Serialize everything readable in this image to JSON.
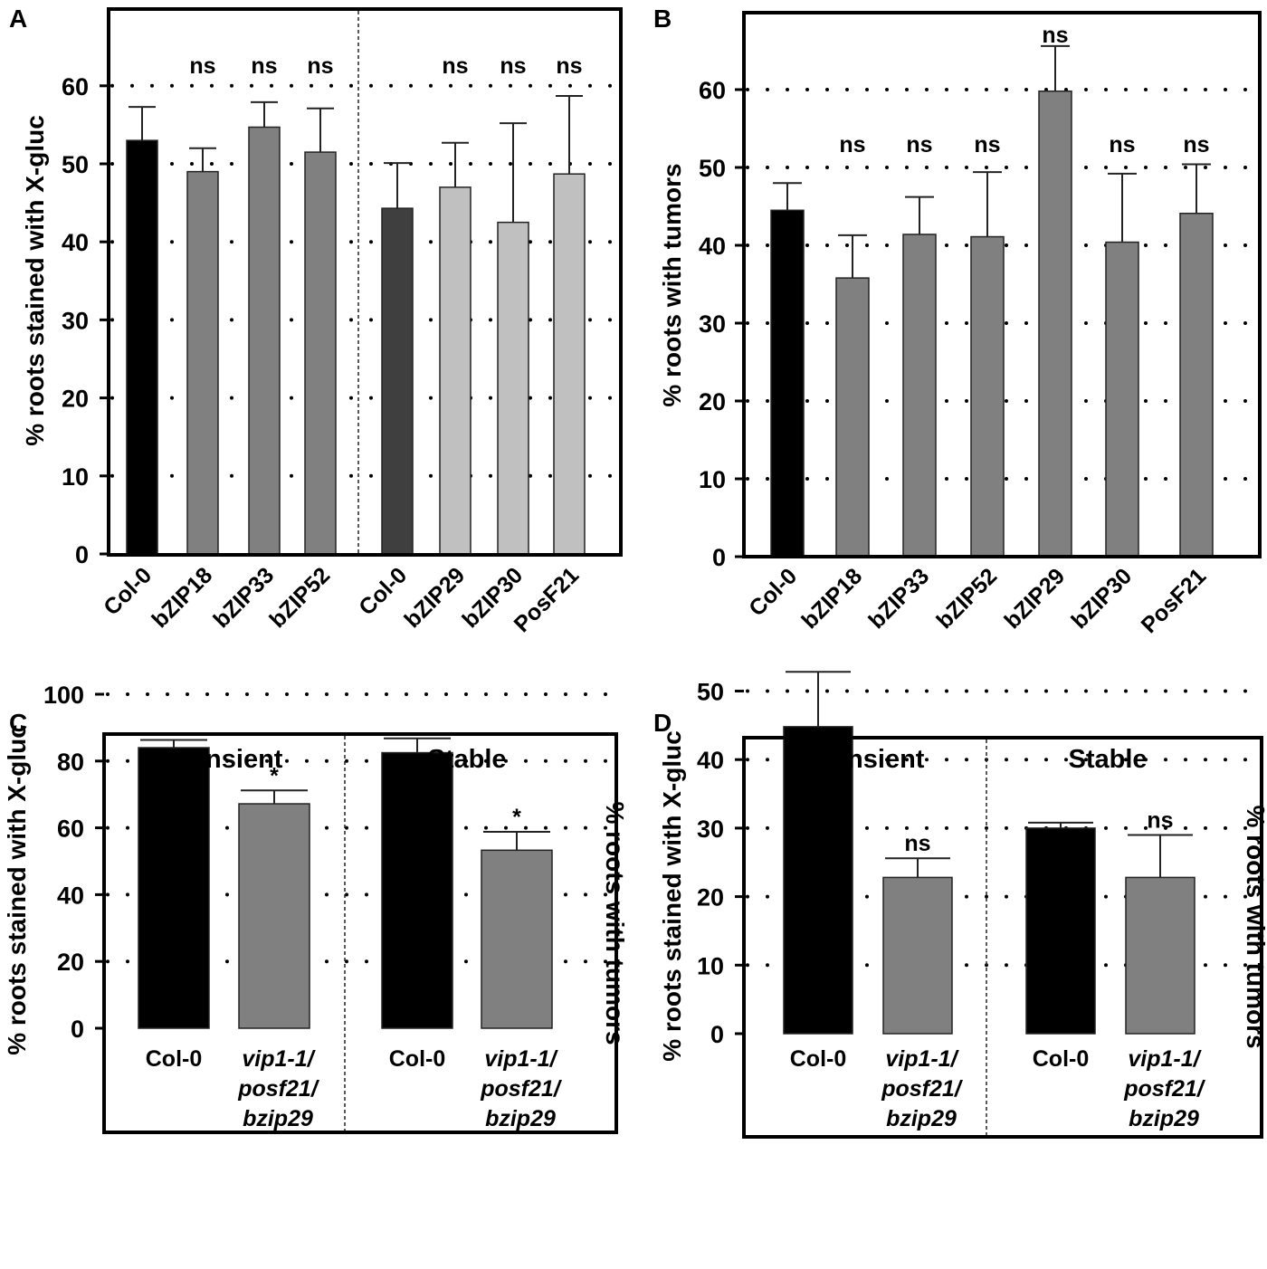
{
  "chart_data": [
    {
      "panel": "A",
      "type": "bar",
      "ylabel": "% roots stained with X-gluc",
      "ylim": [
        0,
        70
      ],
      "yticks": [
        0,
        10,
        20,
        30,
        40,
        50,
        60
      ],
      "gridlines": [
        10,
        20,
        30,
        40,
        50,
        60
      ],
      "categories": [
        "Col-0",
        "bZIP18",
        "bZIP33",
        "bZIP52",
        "Col-0",
        "bZIP29",
        "bZIP30",
        "PosF21"
      ],
      "values": [
        53,
        49,
        54.7,
        51.5,
        44.3,
        47,
        42.5,
        48.7
      ],
      "errors": [
        4.3,
        3,
        3.2,
        5.6,
        5.8,
        5.7,
        12.7,
        10
      ],
      "annotations": [
        "",
        "ns",
        "ns",
        "ns",
        "",
        "ns",
        "ns",
        "ns"
      ],
      "colors": [
        "#000000",
        "#808080",
        "#808080",
        "#808080",
        "#3f3f3f",
        "#c0c0c0",
        "#c0c0c0",
        "#c0c0c0"
      ]
    },
    {
      "panel": "B",
      "type": "bar",
      "ylabel": "% roots with tumors",
      "ylim": [
        0,
        70
      ],
      "yticks": [
        0,
        10,
        20,
        30,
        40,
        50,
        60
      ],
      "gridlines": [
        10,
        20,
        30,
        40,
        50,
        60
      ],
      "categories": [
        "Col-0",
        "bZIP18",
        "bZIP33",
        "bZIP52",
        "bZIP29",
        "bZIP30",
        "PosF21"
      ],
      "values": [
        44.5,
        35.8,
        41.4,
        41.1,
        59.8,
        40.4,
        44.1
      ],
      "errors": [
        3.5,
        5.5,
        4.8,
        8.3,
        5.8,
        8.8,
        6.3
      ],
      "annotations": [
        "",
        "ns",
        "ns",
        "ns",
        "ns",
        "ns",
        "ns"
      ],
      "colors": [
        "#000000",
        "#808080",
        "#808080",
        "#808080",
        "#808080",
        "#808080",
        "#808080"
      ]
    },
    {
      "panel": "C",
      "type": "bar",
      "ylabel": "% roots  stained with X-gluc",
      "ylabel_right": "% roots with tumors",
      "ylim": [
        0,
        120
      ],
      "yticks": [
        0,
        20,
        40,
        60,
        80,
        100
      ],
      "gridlines": [
        20,
        40,
        60,
        80,
        100
      ],
      "sections": [
        "Transient",
        "Stable"
      ],
      "categories": [
        "Col-0",
        "vip1-1/\nposf21/\nbzip29",
        "Col-0",
        "vip1-1/\nposf21/\nbzip29"
      ],
      "values": [
        84,
        67.2,
        82.5,
        53.3
      ],
      "errors": [
        2.3,
        4,
        4.3,
        5.5
      ],
      "annotations": [
        "",
        "*",
        "",
        "*"
      ],
      "colors": [
        "#000000",
        "#808080",
        "#000000",
        "#808080"
      ]
    },
    {
      "panel": "D",
      "type": "bar",
      "ylabel": "% roots stained with X-gluc",
      "ylabel_right": "% roots with tumors",
      "ylim": [
        0,
        60
      ],
      "yticks": [
        0,
        10,
        20,
        30,
        40,
        50
      ],
      "gridlines": [
        10,
        20,
        30,
        40,
        50
      ],
      "sections": [
        "Transient",
        "Stable"
      ],
      "categories": [
        "Col-0",
        "vip1-1/\nposf21/\nbzip29",
        "Col-0",
        "vip1-1/\nposf21/\nbzip29"
      ],
      "values": [
        44.8,
        22.8,
        30,
        22.8
      ],
      "errors": [
        8,
        2.8,
        0.8,
        6.2
      ],
      "annotations": [
        "",
        "ns",
        "",
        "ns"
      ],
      "colors": [
        "#000000",
        "#808080",
        "#000000",
        "#808080"
      ]
    }
  ]
}
